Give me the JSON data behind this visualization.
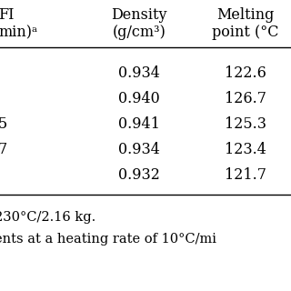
{
  "col1_header_line1": "FI",
  "col1_header_line2": "min)ᵃ",
  "col2_header_line1": "Density",
  "col2_header_line2": "(g/cm³)",
  "col3_header_line1": "Melting",
  "col3_header_line2": "point (°C",
  "col1_values": [
    "",
    "",
    "5",
    "7",
    ""
  ],
  "col2_values": [
    "0.934",
    "0.940",
    "0.941",
    "0.934",
    "0.932"
  ],
  "col3_values": [
    "122.6",
    "126.7",
    "125.3",
    "123.4",
    "121.7"
  ],
  "footnote1": "230°C/2.16 kg.",
  "footnote2": "ents at a heating rate of 10°C/mi",
  "bg_color": "#ffffff",
  "text_color": "#000000",
  "font_size": 11.5,
  "footnote_font_size": 10.5
}
